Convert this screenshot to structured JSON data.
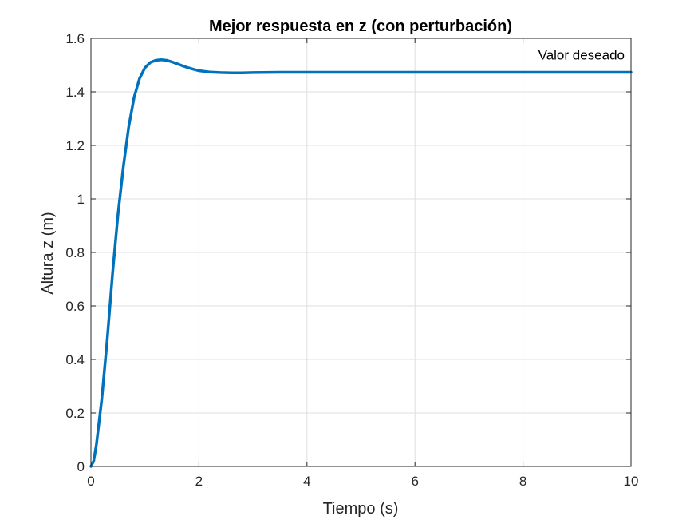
{
  "chart_data": {
    "type": "line",
    "title": "Mejor respuesta en z (con perturbación)",
    "xlabel": "Tiempo (s)",
    "ylabel": "Altura z (m)",
    "xlim": [
      0,
      10
    ],
    "ylim": [
      0,
      1.6
    ],
    "grid": true,
    "xticks": [
      0,
      2,
      4,
      6,
      8,
      10
    ],
    "yticks": [
      0,
      0.2,
      0.4,
      0.6,
      0.8,
      1,
      1.2,
      1.4,
      1.6
    ],
    "xtick_labels": [
      "0",
      "2",
      "4",
      "6",
      "8",
      "10"
    ],
    "ytick_labels": [
      "0",
      "0.2",
      "0.4",
      "0.6",
      "0.8",
      "1",
      "1.2",
      "1.4",
      "1.6"
    ],
    "series": [
      {
        "color": "#0072BD",
        "x": [
          0,
          0.05,
          0.1,
          0.2,
          0.3,
          0.4,
          0.5,
          0.6,
          0.7,
          0.8,
          0.9,
          1.0,
          1.1,
          1.2,
          1.3,
          1.4,
          1.5,
          1.6,
          1.7,
          1.8,
          1.9,
          2.0,
          2.2,
          2.4,
          2.6,
          2.8,
          3.0,
          3.5,
          4.0,
          5.0,
          6.0,
          7.0,
          8.0,
          9.0,
          10.0
        ],
        "y": [
          0,
          0.02,
          0.08,
          0.25,
          0.47,
          0.72,
          0.94,
          1.12,
          1.27,
          1.38,
          1.45,
          1.49,
          1.51,
          1.518,
          1.52,
          1.518,
          1.512,
          1.505,
          1.497,
          1.49,
          1.484,
          1.479,
          1.474,
          1.472,
          1.471,
          1.471,
          1.472,
          1.473,
          1.473,
          1.473,
          1.473,
          1.473,
          1.473,
          1.473,
          1.473
        ]
      }
    ],
    "reference_line": {
      "y": 1.5,
      "label": "Valor deseado",
      "style": "dashed",
      "color": "#262626"
    }
  }
}
